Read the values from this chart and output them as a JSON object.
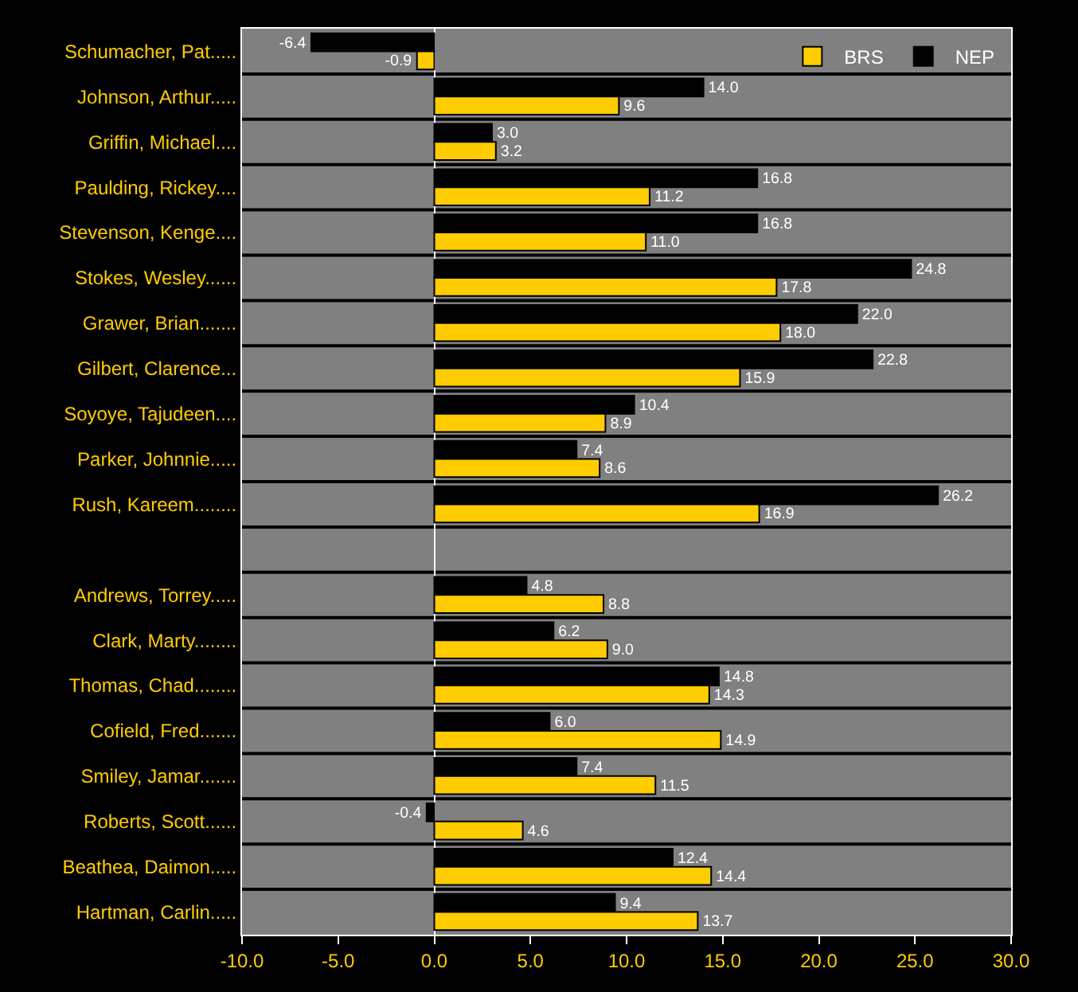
{
  "chart_data": {
    "type": "bar",
    "orientation": "horizontal",
    "categories": [
      "Schumacher, Pat.....",
      "Johnson, Arthur.....",
      "Griffin, Michael....",
      "Paulding, Rickey....",
      "Stevenson, Kenge....",
      "Stokes, Wesley......",
      "Grawer, Brian.......",
      "Gilbert, Clarence...",
      "Soyoye, Tajudeen....",
      "Parker, Johnnie.....",
      "Rush, Kareem........",
      null,
      "Andrews, Torrey.....",
      "Clark, Marty........",
      "Thomas, Chad........",
      "Cofield, Fred.......",
      "Smiley, Jamar.......",
      "Roberts, Scott......",
      "Beathea, Daimon.....",
      "Hartman, Carlin....."
    ],
    "series": [
      {
        "name": "BRS",
        "color": "#ffcc00",
        "values": [
          -0.9,
          9.6,
          3.2,
          11.2,
          11,
          17.8,
          18,
          15.9,
          8.9,
          8.6,
          16.9,
          null,
          8.8,
          9,
          14.3,
          14.9,
          11.5,
          4.6,
          14.4,
          13.7
        ],
        "value_labels": [
          "-0.9",
          "9.6",
          "3.2",
          "11.2",
          "11.0",
          "17.8",
          "18.0",
          "15.9",
          "8.9",
          "8.6",
          "16.9",
          null,
          "8.8",
          "9.0",
          "14.3",
          "14.9",
          "11.5",
          "4.6",
          "14.4",
          "13.7"
        ]
      },
      {
        "name": "NEP",
        "color": "#000000",
        "values": [
          -6.4,
          14,
          3,
          16.8,
          16.8,
          24.8,
          22,
          22.8,
          10.4,
          7.4,
          26.2,
          null,
          4.8,
          6.2,
          14.8,
          6,
          7.4,
          -0.4,
          12.4,
          9.4
        ],
        "value_labels": [
          "-6.4",
          "14.0",
          "3.0",
          "16.8",
          "16.8",
          "24.8",
          "22.0",
          "22.8",
          "10.4",
          "7.4",
          "26.2",
          null,
          "4.8",
          "6.2",
          "14.8",
          "6.0",
          "7.4",
          "-0.4",
          "12.4",
          "9.4"
        ]
      }
    ],
    "xlim": [
      -10,
      30
    ],
    "xticks": [
      {
        "value": -10,
        "label": "-10.0"
      },
      {
        "value": -5,
        "label": "-5.0"
      },
      {
        "value": 0,
        "label": "0.0"
      },
      {
        "value": 5,
        "label": "5.0"
      },
      {
        "value": 10,
        "label": "10.0"
      },
      {
        "value": 15,
        "label": "15.0"
      },
      {
        "value": 20,
        "label": "20.0"
      },
      {
        "value": 25,
        "label": "25.0"
      },
      {
        "value": 30,
        "label": "30.0"
      }
    ],
    "grid": "y",
    "legend": "top right"
  }
}
